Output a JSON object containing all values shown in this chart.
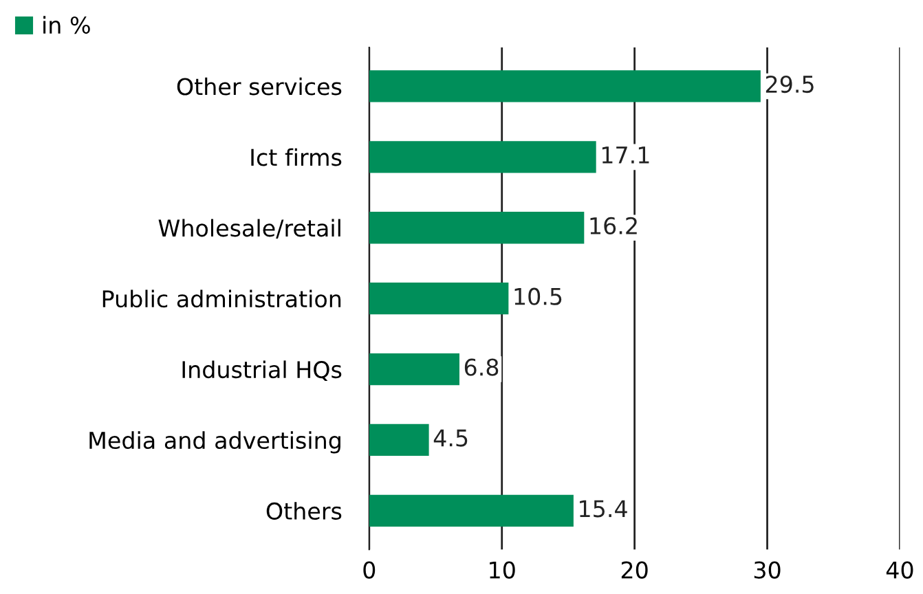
{
  "chart_data": {
    "type": "bar",
    "orientation": "horizontal",
    "categories": [
      "Other services",
      "Ict firms",
      "Wholesale/retail",
      "Public administration",
      "Industrial HQs",
      "Media and advertising",
      "Others"
    ],
    "series": [
      {
        "name": "in %",
        "color": "#008f5a",
        "values": [
          29.5,
          17.1,
          16.2,
          10.5,
          6.8,
          4.5,
          15.4
        ]
      }
    ],
    "xlim": [
      0,
      40
    ],
    "xticks": [
      0,
      10,
      20,
      30,
      40
    ],
    "grid": "x",
    "legend": "top left",
    "data_labels": true
  }
}
